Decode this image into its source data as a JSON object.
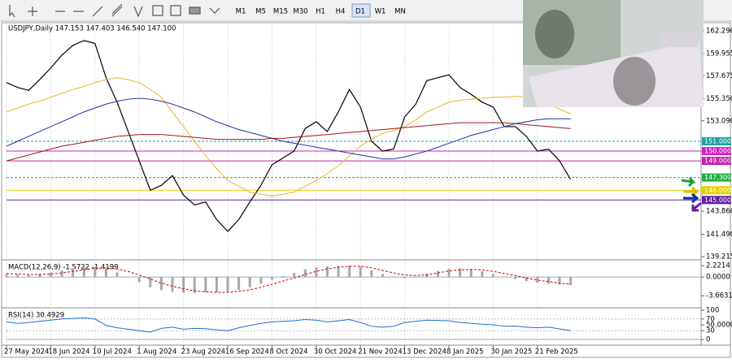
{
  "toolbar": {
    "timeframes": [
      "M1",
      "M5",
      "M15",
      "M30",
      "H1",
      "H4",
      "D1",
      "W1",
      "MN"
    ],
    "active": "D1"
  },
  "chart_data": [
    {
      "type": "line",
      "title": "USDJPY,Daily 147.153 147.403 146.540 147.100",
      "categories": [
        "27 May 2024",
        null,
        null,
        null,
        "18 Jun 2024",
        null,
        null,
        null,
        "10 Jul 2024",
        null,
        null,
        null,
        "1 Aug 2024",
        null,
        null,
        null,
        "23 Aug 2024",
        null,
        null,
        null,
        "16 Sep 2024",
        null,
        null,
        null,
        "8 Oct 2024",
        null,
        null,
        null,
        "30 Oct 2024",
        null,
        null,
        null,
        "21 Nov 2024",
        null,
        null,
        null,
        "13 Dec 2024",
        null,
        null,
        null,
        "8 Jan 2025",
        null,
        null,
        null,
        "30 Jan 2025",
        null,
        null,
        null,
        "21 Feb 2025",
        null,
        null,
        null
      ],
      "series": [
        {
          "color": "#000000",
          "values": [
            157.0,
            156.5,
            156.2,
            157.3,
            158.5,
            159.8,
            160.8,
            161.3,
            161.0,
            157.5,
            155.0,
            152.0,
            149.0,
            146.0,
            146.5,
            147.5,
            145.5,
            144.5,
            144.8,
            143.0,
            141.8,
            143.0,
            144.8,
            146.5,
            148.6,
            149.3,
            150.0,
            152.3,
            153.0,
            152.0,
            154.0,
            156.3,
            154.5,
            151.0,
            150.0,
            150.2,
            153.5,
            154.8,
            157.2,
            157.5,
            157.8,
            156.5,
            155.8,
            155.0,
            154.5,
            152.5,
            152.5,
            151.5,
            150.0,
            150.2,
            149.0,
            147.1
          ]
        },
        {
          "color": "#f0b030",
          "values": [
            154.0,
            154.4,
            154.8,
            155.1,
            155.5,
            155.9,
            156.3,
            156.6,
            157.0,
            157.3,
            157.5,
            157.3,
            157.0,
            156.3,
            155.5,
            154.0,
            152.5,
            151.0,
            149.5,
            148.2,
            147.0,
            146.4,
            145.8,
            145.6,
            145.4,
            145.6,
            145.8,
            146.4,
            147.0,
            147.7,
            148.5,
            149.5,
            150.5,
            151.2,
            151.8,
            152.1,
            152.5,
            153.2,
            154.0,
            154.5,
            155.0,
            155.2,
            155.3,
            155.4,
            155.5,
            155.5,
            155.6,
            155.5,
            155.3,
            154.8,
            154.3,
            153.8
          ]
        },
        {
          "color": "#2030a0",
          "values": [
            150.5,
            151.0,
            151.5,
            152.0,
            152.5,
            153.0,
            153.5,
            154.0,
            154.4,
            154.8,
            155.1,
            155.3,
            155.4,
            155.3,
            155.1,
            154.8,
            154.4,
            154.0,
            153.5,
            153.0,
            152.6,
            152.2,
            151.9,
            151.6,
            151.3,
            151.0,
            150.8,
            150.6,
            150.4,
            150.2,
            150.0,
            149.8,
            149.6,
            149.4,
            149.2,
            149.2,
            149.4,
            149.7,
            150.0,
            150.4,
            150.8,
            151.2,
            151.6,
            151.9,
            152.2,
            152.5,
            152.8,
            153.0,
            153.2,
            153.3,
            153.3,
            153.3
          ]
        },
        {
          "color": "#a01818",
          "values": [
            149.0,
            149.3,
            149.6,
            149.9,
            150.2,
            150.5,
            150.7,
            150.9,
            151.1,
            151.3,
            151.5,
            151.6,
            151.7,
            151.7,
            151.7,
            151.6,
            151.5,
            151.4,
            151.3,
            151.2,
            151.2,
            151.2,
            151.2,
            151.2,
            151.3,
            151.3,
            151.4,
            151.5,
            151.6,
            151.7,
            151.8,
            151.9,
            152.0,
            152.1,
            152.2,
            152.3,
            152.4,
            152.5,
            152.6,
            152.7,
            152.8,
            152.9,
            152.9,
            152.9,
            152.9,
            152.9,
            152.8,
            152.7,
            152.6,
            152.5,
            152.4,
            152.3
          ]
        }
      ],
      "ylim": [
        139.05,
        162.95
      ],
      "yticks": [
        {
          "value": 162.29,
          "label": "162.290"
        },
        {
          "value": 159.955,
          "label": "159.955"
        },
        {
          "value": 157.675,
          "label": "157.675"
        },
        {
          "value": 155.35,
          "label": "155.350"
        },
        {
          "value": 153.09,
          "label": "153.090"
        },
        {
          "value": 143.86,
          "label": "143.860"
        },
        {
          "value": 141.49,
          "label": "141.490"
        },
        {
          "value": 139.215,
          "label": "139.215"
        }
      ],
      "levels": [
        {
          "value": 151,
          "label": "151.000",
          "color": "#20a0a0"
        },
        {
          "value": 150,
          "label": "150.000",
          "color": "#d020c0"
        },
        {
          "value": 149,
          "label": "149.000",
          "color": "#c020b0"
        },
        {
          "value": 147.3,
          "label": "147.300",
          "color": "#20b040"
        },
        {
          "value": 146,
          "label": "146.000",
          "color": "#e0d000"
        },
        {
          "value": 145,
          "label": "145.000",
          "color": "#6020a0"
        }
      ]
    },
    {
      "type": "bar",
      "title": "MACD(12,26,9) -1.5722 -1.4199",
      "series": [
        {
          "color": "#a8a8a8",
          "type": "bar",
          "values": [
            0.6,
            0.5,
            0.4,
            0.6,
            0.9,
            1.3,
            1.7,
            1.9,
            2.0,
            1.6,
            0.9,
            0.0,
            -1.0,
            -2.0,
            -2.6,
            -2.9,
            -3.1,
            -3.2,
            -3.0,
            -3.0,
            -2.9,
            -2.5,
            -2.0,
            -1.3,
            -0.5,
            0.2,
            0.8,
            1.5,
            1.9,
            2.1,
            2.2,
            2.2,
            2.0,
            1.3,
            0.6,
            0.1,
            -0.2,
            0.1,
            0.7,
            1.2,
            1.6,
            1.7,
            1.5,
            1.1,
            0.6,
            0.1,
            -0.4,
            -0.8,
            -1.1,
            -1.3,
            -1.5,
            -1.5722
          ]
        },
        {
          "color": "#d00000",
          "type": "dashed",
          "values": [
            0.7,
            0.6,
            0.5,
            0.5,
            0.6,
            0.8,
            1.1,
            1.4,
            1.7,
            1.8,
            1.6,
            1.1,
            0.4,
            -0.4,
            -1.2,
            -1.8,
            -2.3,
            -2.7,
            -2.9,
            -3.0,
            -3.0,
            -2.8,
            -2.5,
            -2.0,
            -1.4,
            -0.8,
            -0.2,
            0.5,
            1.1,
            1.6,
            1.9,
            2.1,
            2.1,
            1.8,
            1.3,
            0.8,
            0.4,
            0.3,
            0.4,
            0.8,
            1.2,
            1.4,
            1.5,
            1.4,
            1.1,
            0.7,
            0.3,
            -0.2,
            -0.6,
            -0.9,
            -1.2,
            -1.4199
          ]
        }
      ],
      "ylim": [
        -5.7,
        3.2
      ],
      "yticks": [
        2.2214,
        {
          "value": 0,
          "label": "0.0000"
        },
        -3.6631
      ]
    },
    {
      "type": "line",
      "title": "RSI(14) 30.4929",
      "series": [
        {
          "color": "#1e6fd0",
          "values": [
            60,
            55,
            58,
            62,
            66,
            70,
            72,
            74,
            70,
            48,
            40,
            35,
            30,
            25,
            38,
            42,
            35,
            38,
            37,
            33,
            30,
            40,
            48,
            55,
            60,
            62,
            64,
            68,
            66,
            60,
            64,
            68,
            58,
            45,
            42,
            45,
            58,
            62,
            66,
            65,
            64,
            58,
            55,
            52,
            50,
            45,
            46,
            42,
            40,
            42,
            36,
            30.4929
          ]
        }
      ],
      "ylim": [
        -11,
        105.5
      ],
      "yticks": [
        100,
        70,
        {
          "value": 50,
          "label": "50.0000"
        },
        30,
        0
      ]
    }
  ]
}
